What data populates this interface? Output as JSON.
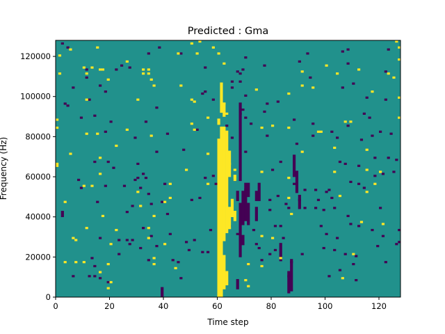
{
  "chart_data": {
    "type": "heatmap",
    "title": "Predicted : Gma",
    "xlabel": "Time step",
    "ylabel": "Frequency (Hz)",
    "xlim": [
      0,
      128
    ],
    "ylim": [
      0,
      128000
    ],
    "x_ticks": [
      0,
      20,
      40,
      60,
      80,
      100,
      120
    ],
    "y_ticks": [
      0,
      20000,
      40000,
      60000,
      80000,
      100000,
      120000
    ],
    "grid": false,
    "legend": "none",
    "colormap": {
      "low": "#440154",
      "mid": "#21918c",
      "high": "#fde725"
    },
    "background_value": "mid",
    "cells": {
      "high": [
        [
          0,
          84
        ],
        [
          0,
          88
        ],
        [
          0,
          65
        ],
        [
          0,
          66
        ],
        [
          1,
          111
        ],
        [
          1,
          120
        ],
        [
          3,
          47
        ],
        [
          3,
          17
        ],
        [
          5,
          123
        ],
        [
          5,
          71
        ],
        [
          6,
          29
        ],
        [
          7,
          17
        ],
        [
          7,
          28
        ],
        [
          10,
          114
        ],
        [
          10,
          55
        ],
        [
          10,
          17
        ],
        [
          11,
          111
        ],
        [
          11,
          98
        ],
        [
          11,
          81
        ],
        [
          11,
          34
        ],
        [
          13,
          114
        ],
        [
          13,
          55
        ],
        [
          15,
          124
        ],
        [
          15,
          81
        ],
        [
          16,
          113
        ],
        [
          16,
          69
        ],
        [
          16,
          61
        ],
        [
          16,
          12
        ],
        [
          17,
          113
        ],
        [
          17,
          40
        ],
        [
          19,
          108
        ],
        [
          19,
          16
        ],
        [
          19,
          4
        ],
        [
          20,
          7
        ],
        [
          20,
          26
        ],
        [
          22,
          33
        ],
        [
          22,
          75
        ],
        [
          26,
          117
        ],
        [
          26,
          83
        ],
        [
          30,
          98
        ],
        [
          30,
          52
        ],
        [
          31,
          45
        ],
        [
          32,
          113
        ],
        [
          32,
          111
        ],
        [
          34,
          113
        ],
        [
          34,
          111
        ],
        [
          34,
          34
        ],
        [
          34,
          29
        ],
        [
          35,
          80
        ],
        [
          35,
          108
        ],
        [
          36,
          105
        ],
        [
          36,
          19
        ],
        [
          36,
          40
        ],
        [
          36,
          16
        ],
        [
          40,
          47
        ],
        [
          40,
          26
        ],
        [
          42,
          56
        ],
        [
          42,
          49
        ],
        [
          44,
          14
        ],
        [
          45,
          121
        ],
        [
          46,
          105
        ],
        [
          48,
          63
        ],
        [
          50,
          126
        ],
        [
          50,
          98
        ],
        [
          50,
          86
        ],
        [
          51,
          97
        ],
        [
          51,
          83
        ],
        [
          52,
          121
        ],
        [
          53,
          127
        ],
        [
          56,
          71
        ],
        [
          56,
          89
        ],
        [
          56,
          56
        ],
        [
          58,
          124
        ],
        [
          60,
          121
        ],
        [
          60,
          9
        ],
        [
          60,
          59
        ],
        [
          62,
          116
        ],
        [
          62,
          96
        ],
        [
          63,
          91
        ],
        [
          64,
          66
        ],
        [
          64,
          43
        ],
        [
          66,
          42
        ],
        [
          66,
          63
        ],
        [
          70,
          8
        ],
        [
          71,
          5
        ],
        [
          71,
          16
        ],
        [
          74,
          103
        ],
        [
          76,
          30
        ],
        [
          76,
          15
        ],
        [
          76,
          84
        ],
        [
          76,
          62
        ],
        [
          80,
          85
        ],
        [
          80,
          29
        ],
        [
          83,
          19
        ],
        [
          86,
          101
        ],
        [
          86,
          84
        ],
        [
          86,
          59
        ],
        [
          86,
          49
        ],
        [
          87,
          41
        ],
        [
          91,
          112
        ],
        [
          91,
          105
        ],
        [
          91,
          72
        ],
        [
          95,
          104
        ],
        [
          97,
          82
        ],
        [
          98,
          82
        ],
        [
          100,
          115
        ],
        [
          103,
          74
        ],
        [
          103,
          62
        ],
        [
          104,
          111
        ],
        [
          105,
          50
        ],
        [
          106,
          9
        ],
        [
          107,
          87
        ],
        [
          109,
          87
        ],
        [
          110,
          21
        ],
        [
          112,
          113
        ],
        [
          113,
          37
        ],
        [
          115,
          63
        ],
        [
          115,
          52
        ],
        [
          115,
          73
        ],
        [
          117,
          102
        ],
        [
          118,
          56
        ],
        [
          120,
          62
        ],
        [
          121,
          36
        ],
        [
          123,
          111
        ],
        [
          125,
          109
        ],
        [
          126,
          127
        ],
        [
          127,
          124
        ],
        [
          127,
          118
        ],
        [
          127,
          99
        ],
        [
          127,
          89
        ]
      ],
      "low": [
        [
          2,
          126
        ],
        [
          3,
          96
        ],
        [
          4,
          124
        ],
        [
          4,
          95
        ],
        [
          6,
          104
        ],
        [
          6,
          10
        ],
        [
          8,
          58
        ],
        [
          9,
          89
        ],
        [
          9,
          54
        ],
        [
          11,
          113
        ],
        [
          11,
          109
        ],
        [
          12,
          98
        ],
        [
          12,
          10
        ],
        [
          13,
          19
        ],
        [
          14,
          90
        ],
        [
          14,
          67
        ],
        [
          14,
          15
        ],
        [
          14,
          10
        ],
        [
          15,
          47
        ],
        [
          16,
          105
        ],
        [
          16,
          29
        ],
        [
          16,
          9
        ],
        [
          18,
          102
        ],
        [
          18,
          82
        ],
        [
          18,
          55
        ],
        [
          19,
          67
        ],
        [
          19,
          7
        ],
        [
          20,
          87
        ],
        [
          21,
          64
        ],
        [
          22,
          113
        ],
        [
          23,
          28
        ],
        [
          23,
          21
        ],
        [
          24,
          115
        ],
        [
          25,
          55
        ],
        [
          26,
          28
        ],
        [
          26,
          42
        ],
        [
          27,
          114
        ],
        [
          27,
          26
        ],
        [
          28,
          28
        ],
        [
          28,
          45
        ],
        [
          29,
          79
        ],
        [
          29,
          58
        ],
        [
          30,
          66
        ],
        [
          30,
          59
        ],
        [
          31,
          54
        ],
        [
          31,
          24
        ],
        [
          32,
          61
        ],
        [
          32,
          34
        ],
        [
          33,
          87
        ],
        [
          33,
          59
        ],
        [
          34,
          121
        ],
        [
          34,
          51
        ],
        [
          34,
          18
        ],
        [
          35,
          30
        ],
        [
          35,
          46
        ],
        [
          37,
          94
        ],
        [
          37,
          72
        ],
        [
          37,
          25
        ],
        [
          38,
          124
        ],
        [
          39,
          47
        ],
        [
          40,
          56
        ],
        [
          41,
          81
        ],
        [
          41,
          41
        ],
        [
          42,
          31
        ],
        [
          43,
          18
        ],
        [
          45,
          17
        ],
        [
          46,
          121
        ],
        [
          46,
          9
        ],
        [
          47,
          73
        ],
        [
          48,
          27
        ],
        [
          49,
          23
        ],
        [
          50,
          48
        ],
        [
          51,
          28
        ],
        [
          52,
          83
        ],
        [
          53,
          49
        ],
        [
          54,
          101
        ],
        [
          54,
          22
        ],
        [
          55,
          114
        ],
        [
          55,
          102
        ],
        [
          55,
          59
        ],
        [
          56,
          22
        ],
        [
          57,
          33
        ],
        [
          58,
          98
        ],
        [
          58,
          60
        ],
        [
          59,
          56
        ],
        [
          60,
          76
        ],
        [
          61,
          52
        ],
        [
          62,
          35
        ],
        [
          63,
          85
        ],
        [
          64,
          35
        ],
        [
          65,
          107
        ],
        [
          65,
          104
        ],
        [
          65,
          79
        ],
        [
          66,
          58
        ],
        [
          67,
          112
        ],
        [
          67,
          31
        ],
        [
          68,
          107
        ],
        [
          68,
          111
        ],
        [
          68,
          91
        ],
        [
          69,
          113
        ],
        [
          69,
          93
        ],
        [
          70,
          100
        ],
        [
          70,
          119
        ],
        [
          70,
          89
        ],
        [
          70,
          72
        ],
        [
          70,
          53
        ],
        [
          71,
          16
        ],
        [
          72,
          86
        ],
        [
          73,
          33
        ],
        [
          74,
          26
        ],
        [
          75,
          24
        ],
        [
          76,
          18
        ],
        [
          77,
          115
        ],
        [
          77,
          92
        ],
        [
          78,
          96
        ],
        [
          78,
          80
        ],
        [
          79,
          48
        ],
        [
          79,
          43
        ],
        [
          79,
          21
        ],
        [
          80,
          63
        ],
        [
          81,
          35
        ],
        [
          81,
          23
        ],
        [
          82,
          97
        ],
        [
          82,
          50
        ],
        [
          83,
          67
        ],
        [
          83,
          35
        ],
        [
          84,
          29
        ],
        [
          85,
          46
        ],
        [
          86,
          44
        ],
        [
          86,
          10
        ],
        [
          87,
          17
        ],
        [
          87,
          3
        ],
        [
          88,
          88
        ],
        [
          88,
          56
        ],
        [
          89,
          76
        ],
        [
          90,
          117
        ],
        [
          90,
          48
        ],
        [
          91,
          21
        ],
        [
          92,
          53
        ],
        [
          92,
          44
        ],
        [
          93,
          121
        ],
        [
          94,
          109
        ],
        [
          95,
          86
        ],
        [
          95,
          80
        ],
        [
          96,
          53
        ],
        [
          96,
          44
        ],
        [
          97,
          48
        ],
        [
          98,
          35
        ],
        [
          99,
          43
        ],
        [
          99,
          24
        ],
        [
          100,
          52
        ],
        [
          100,
          31
        ],
        [
          101,
          53
        ],
        [
          101,
          10
        ],
        [
          102,
          82
        ],
        [
          102,
          49
        ],
        [
          103,
          44
        ],
        [
          103,
          23
        ],
        [
          104,
          79
        ],
        [
          104,
          29
        ],
        [
          105,
          67
        ],
        [
          105,
          13
        ],
        [
          106,
          122
        ],
        [
          106,
          104
        ],
        [
          107,
          66
        ],
        [
          107,
          21
        ],
        [
          108,
          123
        ],
        [
          108,
          116
        ],
        [
          108,
          85
        ],
        [
          108,
          40
        ],
        [
          109,
          57
        ],
        [
          109,
          36
        ],
        [
          110,
          106
        ],
        [
          110,
          16
        ],
        [
          111,
          20
        ],
        [
          111,
          8
        ],
        [
          112,
          65
        ],
        [
          112,
          56
        ],
        [
          112,
          35
        ],
        [
          113,
          78
        ],
        [
          114,
          91
        ],
        [
          114,
          54
        ],
        [
          115,
          99
        ],
        [
          116,
          89
        ],
        [
          117,
          80
        ],
        [
          117,
          33
        ],
        [
          118,
          69
        ],
        [
          118,
          60
        ],
        [
          119,
          25
        ],
        [
          120,
          82
        ],
        [
          120,
          44
        ],
        [
          121,
          61
        ],
        [
          121,
          30
        ],
        [
          122,
          112
        ],
        [
          122,
          98
        ],
        [
          122,
          17
        ],
        [
          123,
          123
        ],
        [
          123,
          69
        ],
        [
          124,
          81
        ],
        [
          125,
          62
        ],
        [
          126,
          68
        ],
        [
          126,
          26
        ],
        [
          127,
          33
        ],
        [
          127,
          27
        ]
      ],
      "high_runs": [
        [
          60,
          0,
          78
        ],
        [
          60,
          86,
          88
        ],
        [
          61,
          0,
          84
        ],
        [
          61,
          92,
          106
        ],
        [
          62,
          4,
          20
        ],
        [
          62,
          28,
          84
        ],
        [
          62,
          90,
          96
        ],
        [
          63,
          6,
          12
        ],
        [
          63,
          32,
          82
        ],
        [
          64,
          34,
          44
        ],
        [
          64,
          60,
          72
        ],
        [
          65,
          40,
          48
        ],
        [
          66,
          38,
          42
        ],
        [
          66,
          58,
          60
        ]
      ],
      "low_runs": [
        [
          2,
          40,
          42
        ],
        [
          39,
          0,
          4
        ],
        [
          67,
          4,
          8
        ],
        [
          67,
          48,
          52
        ],
        [
          68,
          20,
          46
        ],
        [
          68,
          58,
          96
        ],
        [
          69,
          26,
          30
        ],
        [
          69,
          36,
          52
        ],
        [
          70,
          38,
          56
        ],
        [
          71,
          36,
          46
        ],
        [
          71,
          50,
          56
        ],
        [
          74,
          38,
          44
        ],
        [
          74,
          48,
          52
        ],
        [
          75,
          48,
          56
        ],
        [
          83,
          18,
          26
        ],
        [
          86,
          2,
          12
        ],
        [
          87,
          4,
          18
        ],
        [
          88,
          60,
          70
        ],
        [
          89,
          52,
          62
        ],
        [
          90,
          44,
          50
        ]
      ]
    }
  }
}
